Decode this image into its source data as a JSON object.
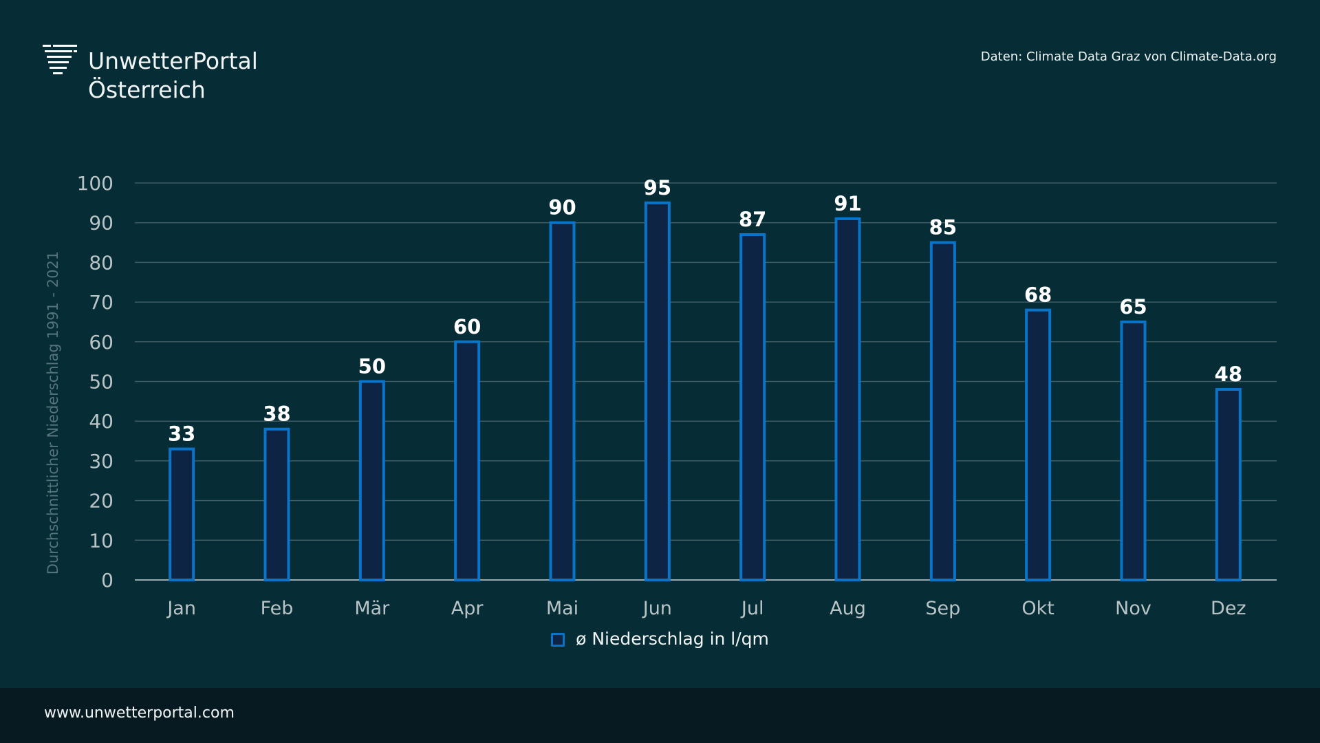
{
  "brand": {
    "line1": "UnwetterPortal",
    "line2": "Österreich"
  },
  "source": "Daten: Climate Data Graz von Climate-Data.org",
  "footer": {
    "url": "www.unwetterportal.com"
  },
  "colors": {
    "background": "#062c36",
    "bar_fill": "#0d2444",
    "bar_stroke": "#0a74c9",
    "grid": "#3f5c63"
  },
  "chart_data": {
    "type": "bar",
    "categories": [
      "Jan",
      "Feb",
      "Mär",
      "Apr",
      "Mai",
      "Jun",
      "Jul",
      "Aug",
      "Sep",
      "Okt",
      "Nov",
      "Dez"
    ],
    "series": [
      {
        "name": "ø Niederschlag in l/qm",
        "values": [
          33,
          38,
          50,
          60,
          90,
          95,
          87,
          91,
          85,
          68,
          65,
          48
        ]
      }
    ],
    "ylabel": "Durchschnittlicher Niederschlag 1991 - 2021",
    "xlabel": "",
    "ylim": [
      0,
      100
    ],
    "yticks": [
      0,
      10,
      20,
      30,
      40,
      50,
      60,
      70,
      80,
      90,
      100
    ],
    "grid": true,
    "legend": "bottom-center",
    "data_labels": true
  }
}
